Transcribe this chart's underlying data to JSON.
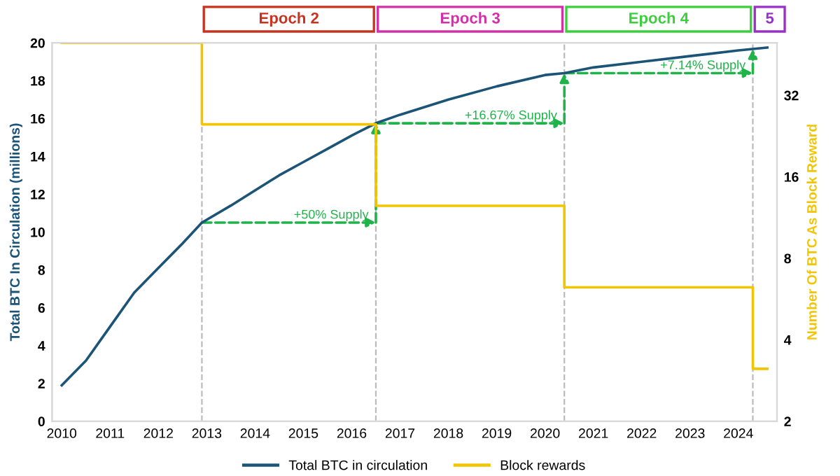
{
  "chart_data": {
    "type": "line",
    "ylabel": "Total BTC In Circulation (millions)",
    "y2label": "Number Of BTC As Block Reward",
    "x": [
      2010,
      2010.5,
      2011,
      2011.5,
      2012,
      2012.5,
      2012.9,
      2013.5,
      2014,
      2014.5,
      2015,
      2015.5,
      2016,
      2016.5,
      2017,
      2018,
      2019,
      2020,
      2020.4,
      2021,
      2022,
      2023,
      2024,
      2024.6
    ],
    "series": [
      {
        "name": "Total BTC in circulation",
        "color": "#1b5476",
        "values": [
          1.9,
          3.2,
          5.0,
          6.8,
          8.1,
          9.4,
          10.5,
          11.4,
          12.2,
          13.0,
          13.7,
          14.4,
          15.1,
          15.75,
          16.2,
          17.0,
          17.7,
          18.3,
          18.4,
          18.7,
          19.0,
          19.3,
          19.6,
          19.75
        ]
      },
      {
        "name": "Block rewards",
        "color": "#f2c500",
        "type": "step",
        "axis": "y2",
        "x": [
          2010,
          2012.9,
          2016.5,
          2020.4,
          2024.3,
          2024.6
        ],
        "values": [
          50,
          25,
          12.5,
          6.25,
          3.125,
          3.125
        ]
      }
    ],
    "xlim": [
      2009.8,
      2024.8
    ],
    "xticks": [
      2010,
      2011,
      2012,
      2013,
      2014,
      2015,
      2016,
      2017,
      2018,
      2019,
      2020,
      2021,
      2022,
      2023,
      2024
    ],
    "ylim": [
      0,
      20
    ],
    "yticks": [
      0,
      2,
      4,
      6,
      8,
      10,
      12,
      14,
      16,
      18,
      20
    ],
    "y2lim": [
      2,
      50
    ],
    "y2ticks": [
      2,
      4,
      8,
      16,
      32
    ],
    "log": "y2",
    "ref_lines": [
      {
        "axis": "x",
        "value": 2012.9,
        "color": "#bbbbbb",
        "line_style": "dashed"
      },
      {
        "axis": "x",
        "value": 2016.5,
        "color": "#bbbbbb",
        "line_style": "dashed"
      },
      {
        "axis": "x",
        "value": 2020.4,
        "color": "#bbbbbb",
        "line_style": "dashed"
      },
      {
        "axis": "x",
        "value": 2024.3,
        "color": "#bbbbbb",
        "line_style": "dashed"
      }
    ],
    "annotations": [
      "Epoch 2",
      "Epoch 3",
      "Epoch 4",
      "5",
      {
        "text": "+50% Supply",
        "x": 2016.5,
        "y": 10.5
      },
      {
        "text": "+16.67% Supply",
        "x": 2020.4,
        "y": 15.75
      },
      {
        "text": "+7.14% Supply",
        "x": 2024.3,
        "y": 18.4
      }
    ],
    "grid": false,
    "legend": "bottom",
    "marker": "none",
    "line_style": "solid"
  }
}
